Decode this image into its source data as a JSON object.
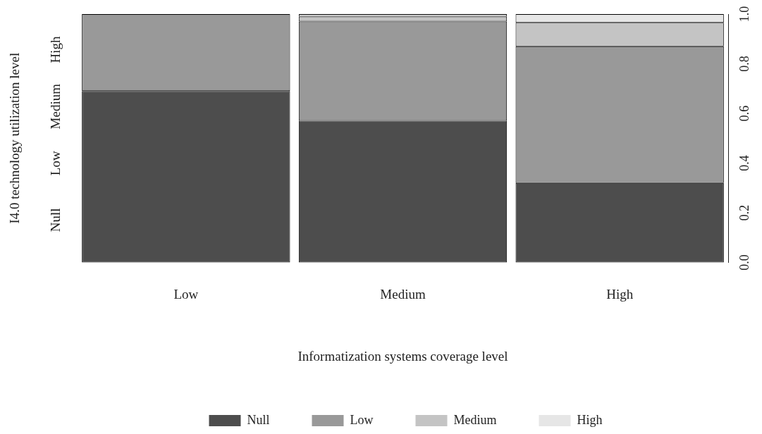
{
  "chart_data": {
    "type": "bar",
    "stacked": true,
    "xlabel": "Informatization systems coverage level",
    "ylabel": "I4.0 technology utilization level",
    "categories": [
      "Low",
      "Medium",
      "High"
    ],
    "series": [
      {
        "name": "Null",
        "color": "#4d4d4d",
        "values": [
          0.69,
          0.57,
          0.32
        ]
      },
      {
        "name": "Low",
        "color": "#999999",
        "values": [
          0.31,
          0.4,
          0.55
        ]
      },
      {
        "name": "Medium",
        "color": "#c4c4c4",
        "values": [
          0,
          0.02,
          0.095
        ]
      },
      {
        "name": "High",
        "color": "#e6e6e6",
        "values": [
          0,
          0.01,
          0.035
        ]
      }
    ],
    "ylim": [
      0,
      1
    ],
    "yticks": [
      {
        "value": 0,
        "label": "0.0"
      },
      0.2,
      0.4,
      0.6,
      0.8,
      {
        "value": 1,
        "label": "1.0"
      }
    ],
    "annotations": [
      "Null",
      "Low",
      "Medium",
      "High"
    ],
    "legend": "bottom",
    "grid": false
  }
}
